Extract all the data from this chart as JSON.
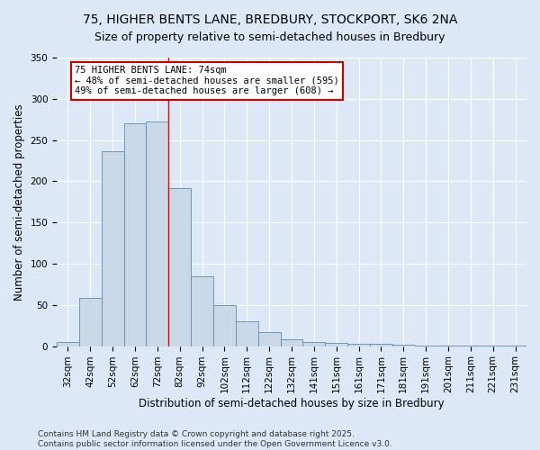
{
  "title_line1": "75, HIGHER BENTS LANE, BREDBURY, STOCKPORT, SK6 2NA",
  "title_line2": "Size of property relative to semi-detached houses in Bredbury",
  "xlabel": "Distribution of semi-detached houses by size in Bredbury",
  "ylabel": "Number of semi-detached properties",
  "bar_labels": [
    "32sqm",
    "42sqm",
    "52sqm",
    "62sqm",
    "72sqm",
    "82sqm",
    "92sqm",
    "102sqm",
    "112sqm",
    "122sqm",
    "132sqm",
    "141sqm",
    "151sqm",
    "161sqm",
    "171sqm",
    "181sqm",
    "191sqm",
    "201sqm",
    "211sqm",
    "221sqm",
    "231sqm"
  ],
  "bar_values": [
    5,
    58,
    237,
    270,
    272,
    192,
    85,
    50,
    30,
    17,
    8,
    5,
    4,
    3,
    3,
    2,
    1,
    1,
    1,
    1,
    1
  ],
  "bar_color": "#c9d9e8",
  "bar_edge_color": "#5b8db8",
  "red_line_x": 4.5,
  "annotation_title": "75 HIGHER BENTS LANE: 74sqm",
  "annotation_line1": "← 48% of semi-detached houses are smaller (595)",
  "annotation_line2": "49% of semi-detached houses are larger (608) →",
  "annotation_box_color": "#ffffff",
  "annotation_box_edge": "#cc0000",
  "ylim": [
    0,
    350
  ],
  "yticks": [
    0,
    50,
    100,
    150,
    200,
    250,
    300,
    350
  ],
  "background_color": "#dce8f5",
  "plot_bg_color": "#dce8f5",
  "footer_line1": "Contains HM Land Registry data © Crown copyright and database right 2025.",
  "footer_line2": "Contains public sector information licensed under the Open Government Licence v3.0.",
  "grid_color": "#ffffff",
  "title_fontsize": 10,
  "subtitle_fontsize": 9,
  "axis_label_fontsize": 8.5,
  "tick_fontsize": 7.5,
  "annotation_fontsize": 7.5,
  "footer_fontsize": 6.5
}
